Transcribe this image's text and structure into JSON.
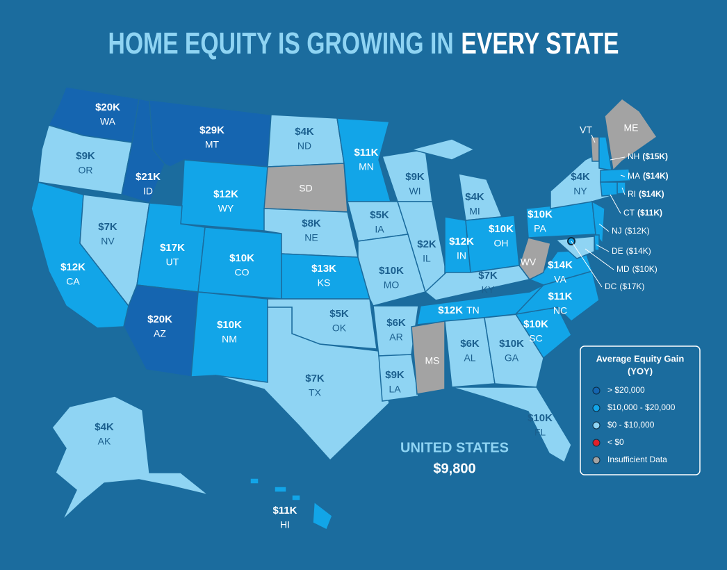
{
  "title": {
    "text": "HOME EQUITY IS GROWING IN",
    "highlight": "EVERY STATE"
  },
  "summary": {
    "label": "UNITED STATES",
    "value": "$9,800"
  },
  "legend": {
    "title": [
      "Average Equity Gain",
      "(YOY)"
    ],
    "items": [
      {
        "label": "> $20,000",
        "color": "#1565b0"
      },
      {
        "label": "$10,000 - $20,000",
        "color": "#12a5e8"
      },
      {
        "label": "$0 - $10,000",
        "color": "#8fd4f3"
      },
      {
        "label": "< $0",
        "color": "#e0202a"
      },
      {
        "label": "Insufficient Data",
        "color": "#a3a3a3"
      }
    ]
  },
  "states": [
    {
      "abbr": "WA",
      "value": "$20K",
      "color": "#1565b0"
    },
    {
      "abbr": "OR",
      "value": "$9K",
      "color": "#8fd4f3"
    },
    {
      "abbr": "CA",
      "value": "$12K",
      "color": "#12a5e8"
    },
    {
      "abbr": "NV",
      "value": "$7K",
      "color": "#8fd4f3"
    },
    {
      "abbr": "ID",
      "value": "$21K",
      "color": "#1565b0"
    },
    {
      "abbr": "MT",
      "value": "$29K",
      "color": "#1565b0"
    },
    {
      "abbr": "WY",
      "value": "$12K",
      "color": "#12a5e8"
    },
    {
      "abbr": "UT",
      "value": "$17K",
      "color": "#12a5e8"
    },
    {
      "abbr": "CO",
      "value": "$10K",
      "color": "#12a5e8"
    },
    {
      "abbr": "AZ",
      "value": "$20K",
      "color": "#1565b0"
    },
    {
      "abbr": "NM",
      "value": "$10K",
      "color": "#12a5e8"
    },
    {
      "abbr": "ND",
      "value": "$4K",
      "color": "#8fd4f3"
    },
    {
      "abbr": "SD",
      "color": "#a3a3a3"
    },
    {
      "abbr": "NE",
      "value": "$8K",
      "color": "#8fd4f3"
    },
    {
      "abbr": "KS",
      "value": "$13K",
      "color": "#12a5e8"
    },
    {
      "abbr": "OK",
      "value": "$5K",
      "color": "#8fd4f3"
    },
    {
      "abbr": "TX",
      "value": "$7K",
      "color": "#8fd4f3"
    },
    {
      "abbr": "MN",
      "value": "$11K",
      "color": "#12a5e8"
    },
    {
      "abbr": "IA",
      "value": "$5K",
      "color": "#8fd4f3"
    },
    {
      "abbr": "MO",
      "value": "$10K",
      "color": "#8fd4f3"
    },
    {
      "abbr": "AR",
      "value": "$6K",
      "color": "#8fd4f3"
    },
    {
      "abbr": "LA",
      "value": "$9K",
      "color": "#8fd4f3"
    },
    {
      "abbr": "WI",
      "value": "$9K",
      "color": "#8fd4f3"
    },
    {
      "abbr": "IL",
      "value": "$2K",
      "color": "#8fd4f3"
    },
    {
      "abbr": "MI",
      "value": "$4K",
      "color": "#8fd4f3"
    },
    {
      "abbr": "IN",
      "value": "$12K",
      "color": "#12a5e8"
    },
    {
      "abbr": "OH",
      "value": "$10K",
      "color": "#12a5e8"
    },
    {
      "abbr": "KY",
      "value": "$7K",
      "color": "#8fd4f3"
    },
    {
      "abbr": "TN",
      "value": "$12K",
      "color": "#12a5e8"
    },
    {
      "abbr": "MS",
      "color": "#a3a3a3"
    },
    {
      "abbr": "AL",
      "value": "$6K",
      "color": "#8fd4f3"
    },
    {
      "abbr": "GA",
      "value": "$10K",
      "color": "#8fd4f3"
    },
    {
      "abbr": "FL",
      "value": "$10K",
      "color": "#8fd4f3"
    },
    {
      "abbr": "SC",
      "value": "$10K",
      "color": "#12a5e8"
    },
    {
      "abbr": "NC",
      "value": "$11K",
      "color": "#12a5e8"
    },
    {
      "abbr": "VA",
      "value": "$14K",
      "color": "#12a5e8"
    },
    {
      "abbr": "WV",
      "color": "#a3a3a3"
    },
    {
      "abbr": "PA",
      "value": "$10K",
      "color": "#12a5e8"
    },
    {
      "abbr": "NY",
      "value": "$4K",
      "color": "#8fd4f3"
    },
    {
      "abbr": "VT",
      "color": "#a3a3a3"
    },
    {
      "abbr": "ME",
      "color": "#a3a3a3"
    },
    {
      "abbr": "NH",
      "value": "($15K)",
      "color": "#12a5e8"
    },
    {
      "abbr": "MA",
      "value": "($14K)",
      "color": "#12a5e8"
    },
    {
      "abbr": "RI",
      "value": "($14K)",
      "color": "#12a5e8"
    },
    {
      "abbr": "CT",
      "value": "($11K)",
      "color": "#12a5e8"
    },
    {
      "abbr": "NJ",
      "value": "($12K)",
      "color": "#12a5e8"
    },
    {
      "abbr": "DE",
      "value": "($14K)",
      "color": "#12a5e8"
    },
    {
      "abbr": "MD",
      "value": "($10K)",
      "color": "#8fd4f3"
    },
    {
      "abbr": "DC",
      "value": "($17K)",
      "color": "#12a5e8"
    },
    {
      "abbr": "AK",
      "value": "$4K",
      "color": "#8fd4f3"
    },
    {
      "abbr": "HI",
      "value": "$11K",
      "color": "#12a5e8"
    }
  ]
}
